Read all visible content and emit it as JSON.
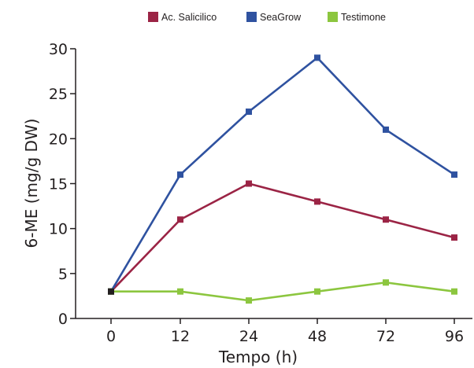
{
  "chart_data": {
    "type": "line",
    "title": "",
    "xlabel": "Tempo (h)",
    "ylabel": "6-ME (mg/g DW)",
    "categories": [
      "0",
      "12",
      "24",
      "48",
      "72",
      "96"
    ],
    "ylim": [
      0,
      30
    ],
    "yticks": [
      "0",
      "5",
      "10",
      "15",
      "20",
      "25",
      "30"
    ],
    "grid": false,
    "legend_position": "top",
    "series": [
      {
        "name": "Ac. Salicilico",
        "color": "#9b2445",
        "values": [
          3,
          11,
          15,
          13,
          11,
          9
        ]
      },
      {
        "name": "SeaGrow",
        "color": "#2f52a0",
        "values": [
          3,
          16,
          23,
          29,
          21,
          16
        ]
      },
      {
        "name": "Testimone",
        "color": "#8cc63f",
        "values": [
          3,
          3,
          2,
          3,
          4,
          3
        ]
      }
    ],
    "first_point_color": "#231f20"
  }
}
